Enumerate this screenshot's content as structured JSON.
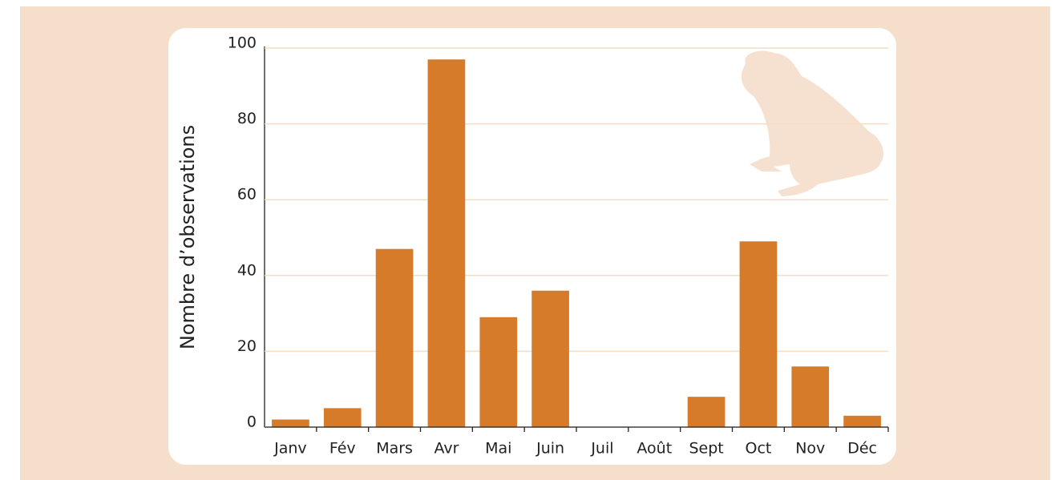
{
  "chart_data": {
    "type": "bar",
    "y_label": "Nombre d’observations",
    "categories": [
      "Janv",
      "Fév",
      "Mars",
      "Avr",
      "Mai",
      "Juin",
      "Juil",
      "Août",
      "Sept",
      "Oct",
      "Nov",
      "Déc"
    ],
    "values": [
      2,
      5,
      47,
      97,
      29,
      36,
      0,
      0,
      8,
      49,
      16,
      3
    ],
    "color": "#d67b2a",
    "ylim": [
      0,
      100
    ],
    "yticks": [
      0,
      20,
      40,
      60,
      80,
      100
    ],
    "grid": true
  }
}
